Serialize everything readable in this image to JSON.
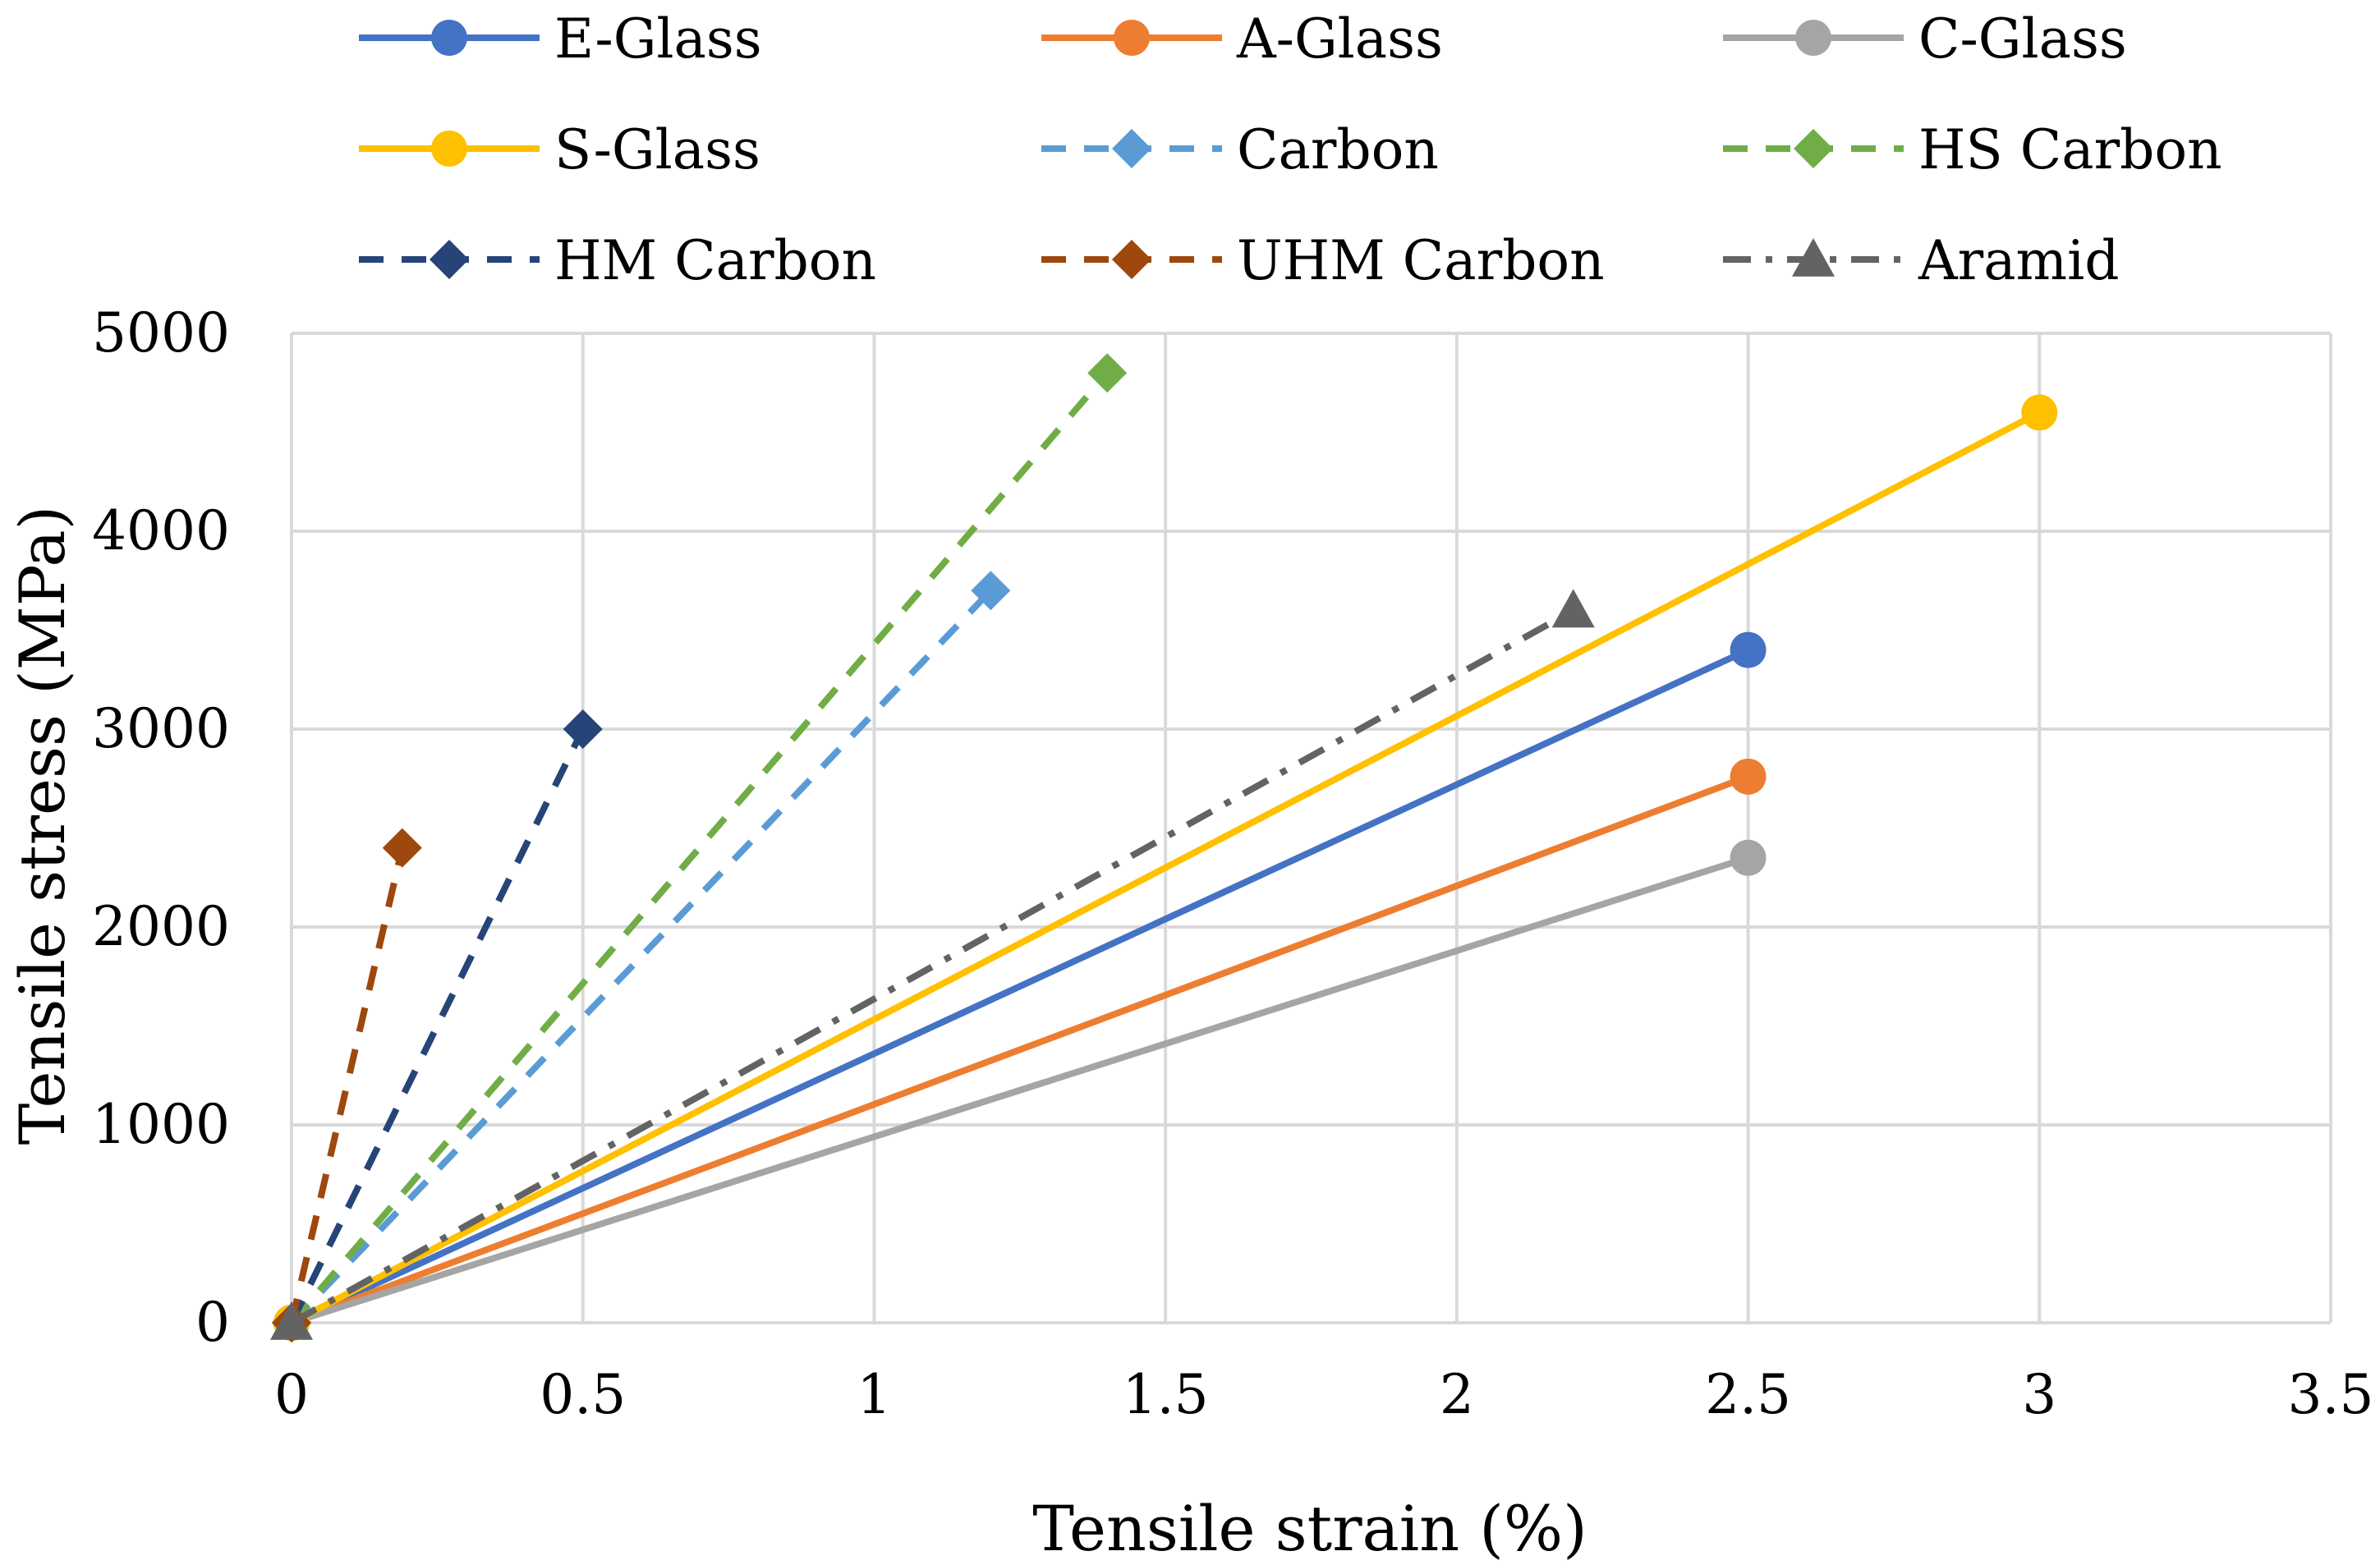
{
  "chart_data": {
    "type": "line",
    "xlabel": "Tensile strain (%)",
    "ylabel": "Tensile stress (MPa)",
    "xlim": [
      0,
      3.5
    ],
    "ylim": [
      0,
      5000
    ],
    "x_ticks": [
      "0",
      "0.5",
      "1",
      "1.5",
      "2",
      "2.5",
      "3",
      "3.5"
    ],
    "y_ticks": [
      "0",
      "1000",
      "2000",
      "3000",
      "4000",
      "5000"
    ],
    "grid": true,
    "legend_position": "top",
    "series": [
      {
        "name": "E-Glass",
        "color": "#4472C4",
        "dash": "solid",
        "marker": "circle",
        "x": [
          0,
          2.5
        ],
        "y": [
          0,
          3400
        ]
      },
      {
        "name": "A-Glass",
        "color": "#ED7D31",
        "dash": "solid",
        "marker": "circle",
        "x": [
          0,
          2.5
        ],
        "y": [
          0,
          2760
        ]
      },
      {
        "name": "C-Glass",
        "color": "#A5A5A5",
        "dash": "solid",
        "marker": "circle",
        "x": [
          0,
          2.5
        ],
        "y": [
          0,
          2350
        ]
      },
      {
        "name": "S-Glass",
        "color": "#FFC000",
        "dash": "solid",
        "marker": "circle",
        "x": [
          0,
          3.0
        ],
        "y": [
          0,
          4600
        ]
      },
      {
        "name": "Carbon",
        "color": "#5B9BD5",
        "dash": "dash",
        "marker": "diamond",
        "x": [
          0,
          1.2
        ],
        "y": [
          0,
          3700
        ]
      },
      {
        "name": "HS Carbon",
        "color": "#70AD47",
        "dash": "dash",
        "marker": "diamond",
        "x": [
          0,
          1.4
        ],
        "y": [
          0,
          4800
        ]
      },
      {
        "name": "HM Carbon",
        "color": "#264478",
        "dash": "dash",
        "marker": "diamond",
        "x": [
          0,
          0.5
        ],
        "y": [
          0,
          3000
        ]
      },
      {
        "name": "UHM Carbon",
        "color": "#9E480E",
        "dash": "dash",
        "marker": "diamond",
        "x": [
          0,
          0.19
        ],
        "y": [
          0,
          2400
        ]
      },
      {
        "name": "Aramid",
        "color": "#636363",
        "dash": "dashdot",
        "marker": "triangle",
        "x": [
          0,
          2.2
        ],
        "y": [
          0,
          3600
        ]
      }
    ]
  }
}
